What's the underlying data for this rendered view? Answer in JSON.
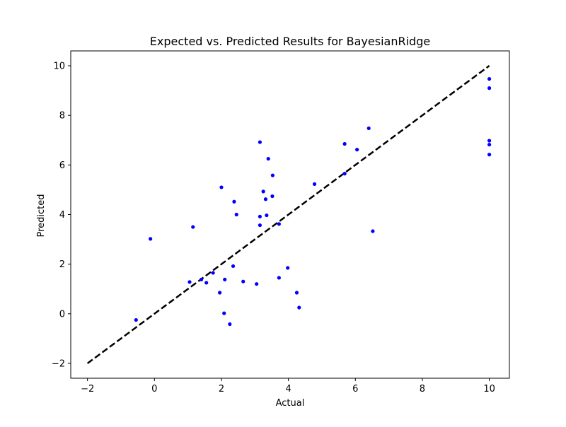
{
  "chart_data": {
    "type": "scatter",
    "title": "Expected vs. Predicted Results for BayesianRidge",
    "xlabel": "Actual",
    "ylabel": "Predicted",
    "xlim": [
      -2.5,
      10.6
    ],
    "ylim": [
      -2.6,
      10.6
    ],
    "x_ticks": [
      -2,
      0,
      2,
      4,
      6,
      8,
      10
    ],
    "y_ticks": [
      -2,
      0,
      2,
      4,
      6,
      8,
      10
    ],
    "x_tick_labels": [
      "−2",
      "0",
      "2",
      "4",
      "6",
      "8",
      "10"
    ],
    "y_tick_labels": [
      "−2",
      "0",
      "2",
      "4",
      "6",
      "8",
      "10"
    ],
    "grid": false,
    "legend": "none",
    "point_color": "#0000ff",
    "line_color": "#000000",
    "reference_line": {
      "x": [
        -2,
        10
      ],
      "y": [
        -2,
        10
      ],
      "style": "dashed"
    },
    "points": [
      {
        "x": -0.55,
        "y": -0.25
      },
      {
        "x": -0.12,
        "y": 3.02
      },
      {
        "x": 1.05,
        "y": 1.28
      },
      {
        "x": 1.15,
        "y": 3.5
      },
      {
        "x": 1.4,
        "y": 1.38
      },
      {
        "x": 1.55,
        "y": 1.25
      },
      {
        "x": 1.75,
        "y": 1.65
      },
      {
        "x": 1.95,
        "y": 0.85
      },
      {
        "x": 2.0,
        "y": 5.1
      },
      {
        "x": 2.1,
        "y": 1.38
      },
      {
        "x": 2.08,
        "y": 0.02
      },
      {
        "x": 2.25,
        "y": -0.42
      },
      {
        "x": 2.35,
        "y": 1.92
      },
      {
        "x": 2.38,
        "y": 4.52
      },
      {
        "x": 2.45,
        "y": 4.0
      },
      {
        "x": 2.65,
        "y": 1.3
      },
      {
        "x": 3.05,
        "y": 1.2
      },
      {
        "x": 3.15,
        "y": 3.92
      },
      {
        "x": 3.15,
        "y": 3.57
      },
      {
        "x": 3.15,
        "y": 6.92
      },
      {
        "x": 3.25,
        "y": 4.93
      },
      {
        "x": 3.32,
        "y": 4.62
      },
      {
        "x": 3.35,
        "y": 3.97
      },
      {
        "x": 3.4,
        "y": 6.25
      },
      {
        "x": 3.52,
        "y": 4.74
      },
      {
        "x": 3.53,
        "y": 5.58
      },
      {
        "x": 3.72,
        "y": 3.62
      },
      {
        "x": 3.72,
        "y": 1.45
      },
      {
        "x": 3.98,
        "y": 1.85
      },
      {
        "x": 4.25,
        "y": 0.85
      },
      {
        "x": 4.32,
        "y": 0.25
      },
      {
        "x": 4.78,
        "y": 5.23
      },
      {
        "x": 5.68,
        "y": 6.85
      },
      {
        "x": 5.68,
        "y": 5.65
      },
      {
        "x": 6.05,
        "y": 6.62
      },
      {
        "x": 6.4,
        "y": 7.48
      },
      {
        "x": 6.52,
        "y": 3.33
      },
      {
        "x": 10.0,
        "y": 9.47
      },
      {
        "x": 10.0,
        "y": 9.1
      },
      {
        "x": 10.0,
        "y": 6.98
      },
      {
        "x": 10.0,
        "y": 6.82
      },
      {
        "x": 10.0,
        "y": 6.42
      }
    ]
  }
}
